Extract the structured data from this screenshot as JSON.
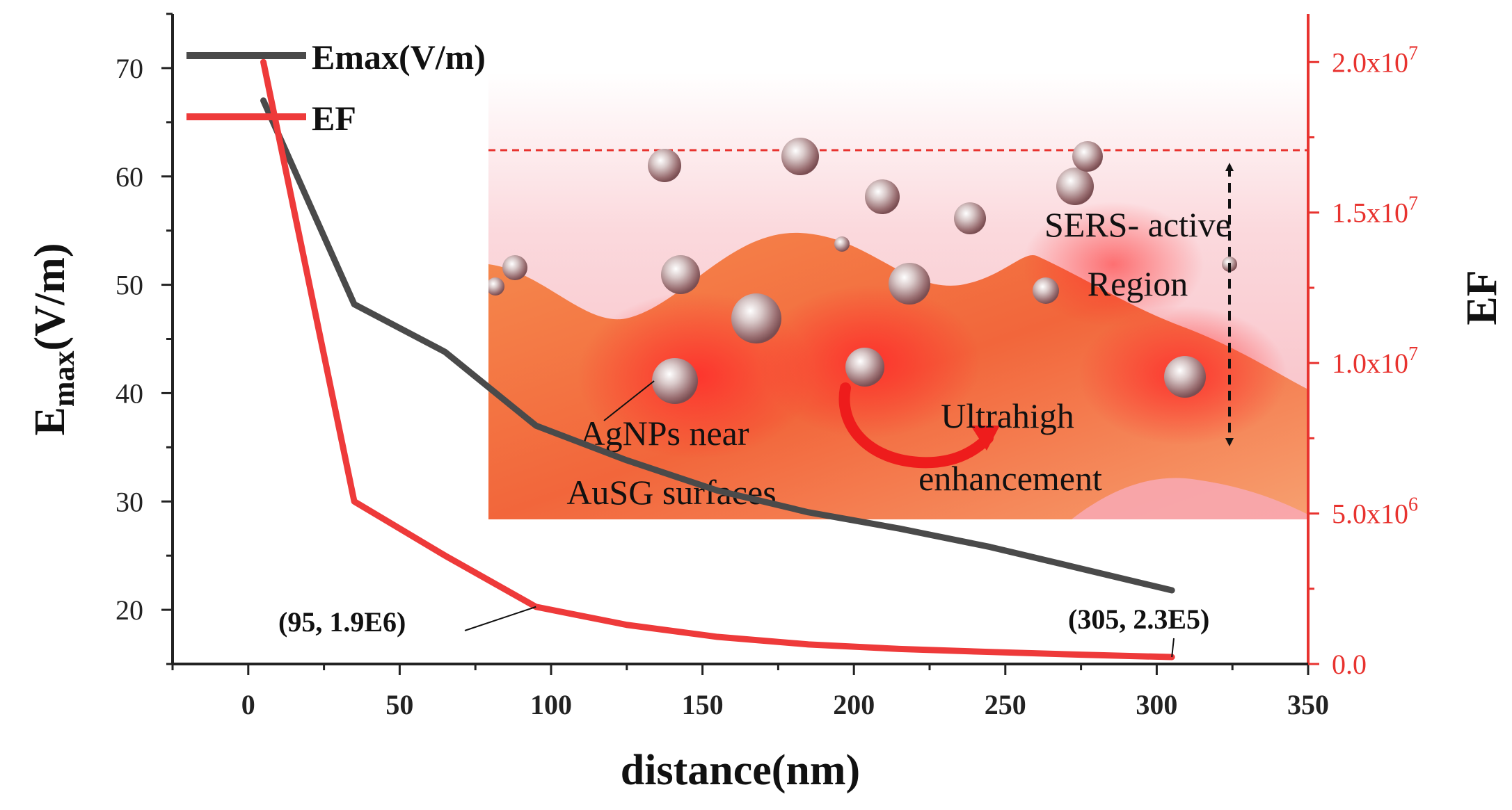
{
  "chart_data": {
    "type": "line",
    "xlabel": "distance(nm)",
    "xlim": [
      -25,
      350
    ],
    "x_ticks": [
      0,
      50,
      100,
      150,
      200,
      250,
      300,
      350
    ],
    "y_left": {
      "label_main": "E",
      "label_sub": "max",
      "label_unit": "(V/m)",
      "lim": [
        15,
        75
      ],
      "ticks": [
        20,
        30,
        40,
        50,
        60,
        70
      ]
    },
    "y_right": {
      "label": "EF",
      "lim": [
        0,
        21600000
      ],
      "ticks": [
        {
          "value": 0,
          "label": "0.0"
        },
        {
          "value": 5000000,
          "base": "5.0x10",
          "exp": "6"
        },
        {
          "value": 10000000,
          "base": "1.0x10",
          "exp": "7"
        },
        {
          "value": 15000000,
          "base": "1.5x10",
          "exp": "7"
        },
        {
          "value": 20000000,
          "base": "2.0x10",
          "exp": "7"
        }
      ]
    },
    "series": [
      {
        "name": "Emax(V/m)",
        "axis": "left",
        "color": "#4a4a4a",
        "x": [
          5,
          35,
          65,
          95,
          125,
          155,
          185,
          215,
          245,
          275,
          305
        ],
        "y": [
          67,
          48.2,
          43.8,
          37,
          33.8,
          31,
          29,
          27.5,
          25.8,
          23.8,
          21.8
        ]
      },
      {
        "name": "EF",
        "axis": "right",
        "color": "#ee3a3a",
        "x": [
          5,
          35,
          65,
          95,
          125,
          155,
          185,
          215,
          245,
          275,
          305
        ],
        "y": [
          20000000,
          5400000,
          3600000,
          1900000,
          1300000,
          900000,
          650000,
          500000,
          400000,
          310000,
          230000
        ]
      }
    ],
    "annotations": [
      {
        "text": "(95, 1.9E6)",
        "x": 95,
        "series": "EF"
      },
      {
        "text": "(305, 2.3E5)",
        "x": 305,
        "series": "EF"
      }
    ],
    "inset": {
      "region_label_line1": "SERS- active",
      "region_label_line2": "Region",
      "agnp_label_line1": "AgNPs near",
      "agnp_label_line2": "AuSG surfaces",
      "enh_label_line1": "Ultrahigh",
      "enh_label_line2": "enhancement"
    },
    "legend_position": "top-left"
  }
}
